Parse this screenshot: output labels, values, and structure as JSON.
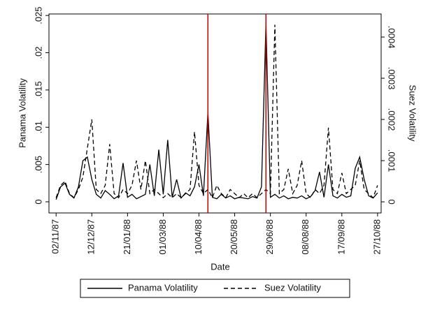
{
  "chart_data": {
    "type": "line",
    "x_label": "Date",
    "y_label": "Panama Volatility",
    "y2_label": "Suez Volatility",
    "x": [
      "02/11/87",
      "07/11/87",
      "12/11/87",
      "17/11/87",
      "22/11/87",
      "27/11/87",
      "02/12/87",
      "07/12/87",
      "12/12/87",
      "17/12/87",
      "22/12/87",
      "27/12/87",
      "01/01/88",
      "06/01/88",
      "11/01/88",
      "16/01/88",
      "21/01/88",
      "26/01/88",
      "31/01/88",
      "05/02/88",
      "10/02/88",
      "15/02/88",
      "20/02/88",
      "25/02/88",
      "01/03/88",
      "06/03/88",
      "11/03/88",
      "16/03/88",
      "21/03/88",
      "26/03/88",
      "31/03/88",
      "05/04/88",
      "10/04/88",
      "15/04/88",
      "20/04/88",
      "25/04/88",
      "30/04/88",
      "05/05/88",
      "10/05/88",
      "15/05/88",
      "20/05/88",
      "25/05/88",
      "30/05/88",
      "04/06/88",
      "09/06/88",
      "14/06/88",
      "19/06/88",
      "24/06/88",
      "29/06/88",
      "04/07/88",
      "09/07/88",
      "14/07/88",
      "19/07/88",
      "24/07/88",
      "29/07/88",
      "03/08/88",
      "08/08/88",
      "13/08/88",
      "18/08/88",
      "23/08/88",
      "28/08/88",
      "02/09/88",
      "07/09/88",
      "12/09/88",
      "17/09/88",
      "22/09/88",
      "27/09/88",
      "02/10/88",
      "07/10/88",
      "12/10/88",
      "17/10/88",
      "22/10/88",
      "27/10/88"
    ],
    "series": [
      {
        "name": "Panama Volatility",
        "color": "#000000",
        "line_style": "solid",
        "values": [
          0.0003,
          0.002,
          0.0025,
          0.001,
          0.0005,
          0.002,
          0.0055,
          0.006,
          0.003,
          0.001,
          0.0005,
          0.0015,
          0.001,
          0.0004,
          0.0008,
          0.0052,
          0.0006,
          0.001,
          0.0004,
          0.0007,
          0.001,
          0.005,
          0.0008,
          0.007,
          0.001,
          0.0083,
          0.0006,
          0.003,
          0.0005,
          0.0012,
          0.0008,
          0.002,
          0.005,
          0.0008,
          0.012,
          0.0006,
          0.0004,
          0.001,
          0.0005,
          0.0008,
          0.0004,
          0.0006,
          0.0005,
          0.0004,
          0.0007,
          0.0005,
          0.002,
          0.024,
          0.0006,
          0.001,
          0.0005,
          0.0008,
          0.0004,
          0.0006,
          0.0005,
          0.0008,
          0.0004,
          0.0007,
          0.0015,
          0.004,
          0.0006,
          0.005,
          0.0008,
          0.0005,
          0.001,
          0.0006,
          0.0008,
          0.0045,
          0.006,
          0.003,
          0.0008,
          0.0005,
          0.0012
        ]
      },
      {
        "name": "Suez Volatility",
        "color": "#000000",
        "line_style": "dashed",
        "axis": "y2",
        "values": [
          1e-05,
          4e-05,
          5e-05,
          2e-05,
          1e-05,
          3e-05,
          6e-05,
          0.00013,
          0.0002,
          3e-05,
          2e-05,
          4e-05,
          0.00014,
          2e-05,
          1e-05,
          3e-05,
          2e-05,
          4e-05,
          0.0001,
          3e-05,
          0.0001,
          2e-05,
          3e-05,
          2e-05,
          1e-05,
          2e-05,
          1e-05,
          2e-05,
          1e-05,
          2e-05,
          3e-05,
          0.00017,
          4e-05,
          2e-05,
          3e-05,
          1e-05,
          4e-05,
          2e-05,
          1e-05,
          3e-05,
          2e-05,
          1e-05,
          2e-05,
          1e-05,
          2e-05,
          1e-05,
          2e-05,
          3e-05,
          2e-05,
          0.00043,
          2e-05,
          3e-05,
          8e-05,
          2e-05,
          4e-05,
          0.0001,
          2e-05,
          1e-05,
          3e-05,
          2e-05,
          4e-05,
          0.00018,
          3e-05,
          2e-05,
          7e-05,
          2e-05,
          3e-05,
          4e-05,
          0.0001,
          3e-05,
          2e-05,
          1e-05,
          4e-05
        ]
      }
    ],
    "vlines": [
      "20/04/88",
      "24/06/88"
    ],
    "vline_color": "#c00000",
    "xlim": [
      "25/10/87",
      "31/10/88"
    ],
    "xticks": [
      "02/11/87",
      "12/12/87",
      "21/01/88",
      "01/03/88",
      "10/04/88",
      "20/05/88",
      "29/06/88",
      "08/08/88",
      "17/09/88",
      "27/10/88"
    ],
    "ylim": [
      -0.0015,
      0.0252
    ],
    "yticks": [
      0,
      {
        "value": 0.005,
        "label": ".005"
      },
      {
        "value": 0.01,
        "label": ".01"
      },
      {
        "value": 0.015,
        "label": ".015"
      },
      {
        "value": 0.02,
        "label": ".02"
      },
      {
        "value": 0.025,
        "label": ".025"
      }
    ],
    "y2lim": [
      -2.7e-05,
      0.000456
    ],
    "y2ticks": [
      0,
      {
        "value": 0.0001,
        "label": ".0001"
      },
      {
        "value": 0.0002,
        "label": ".0002"
      },
      {
        "value": 0.0003,
        "label": ".0003"
      },
      {
        "value": 0.0004,
        "label": ".0004"
      }
    ],
    "legend": "bottom"
  }
}
